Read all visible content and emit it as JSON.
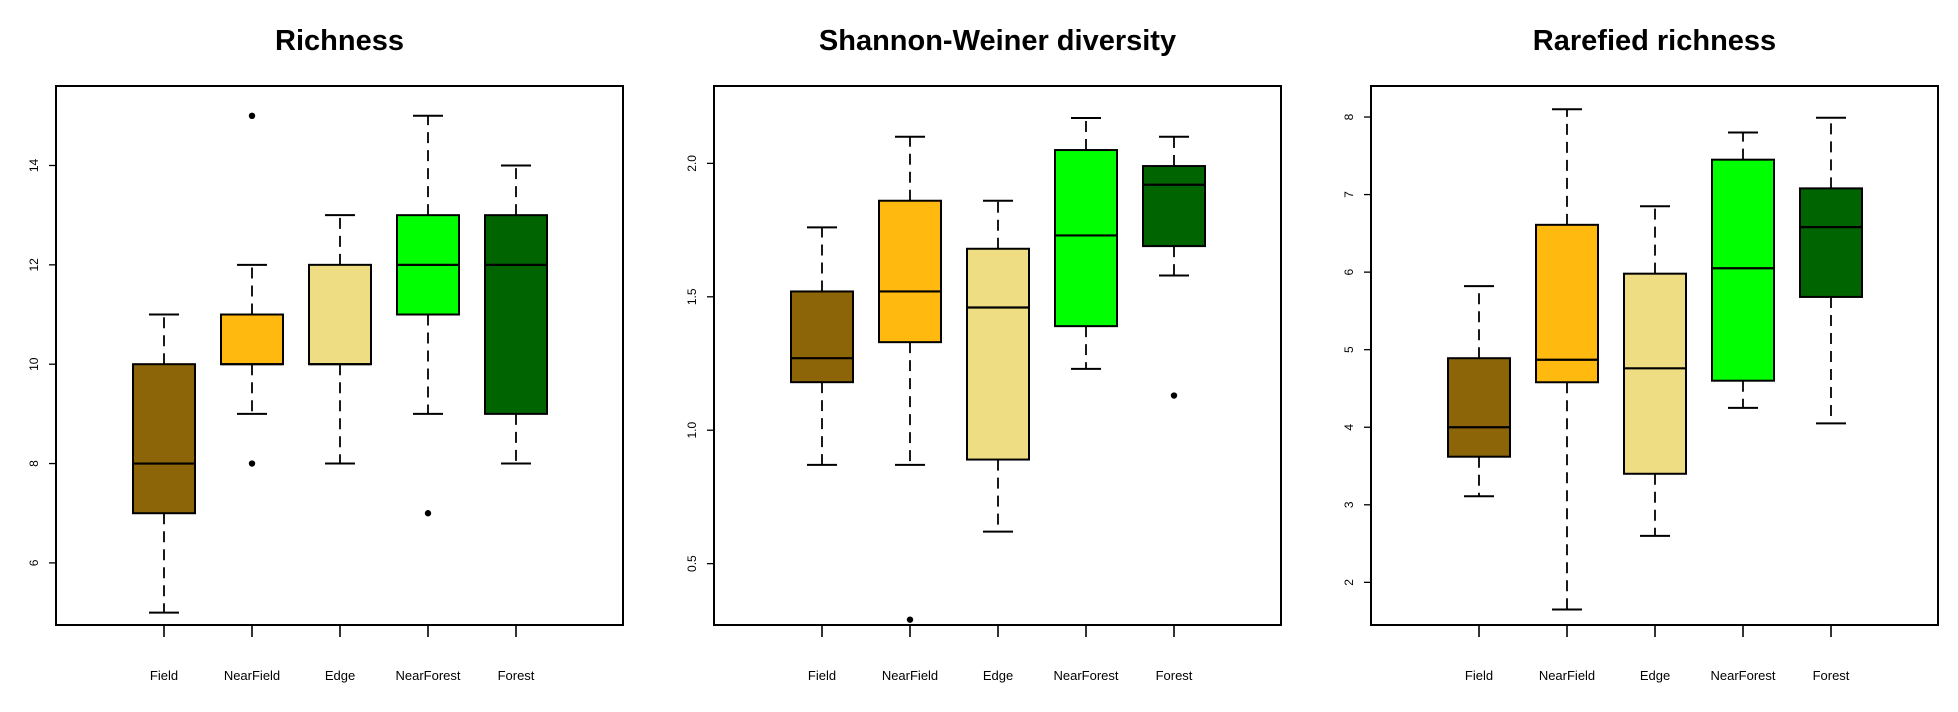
{
  "chart_data": [
    {
      "type": "box",
      "title": "Richness",
      "xlabel": "",
      "ylabel": "",
      "ylim": [
        4.75,
        15.6
      ],
      "yticks": [
        6,
        8,
        10,
        12,
        14
      ],
      "categories": [
        "Field",
        "NearField",
        "Edge",
        "NearForest",
        "Forest"
      ],
      "colors": [
        "#8B6508",
        "#FFB90F",
        "#EEDD82",
        "#00FF00",
        "#006400"
      ],
      "boxes": [
        {
          "category": "Field",
          "whisker_low": 5,
          "q1": 7,
          "median": 8,
          "q3": 10,
          "whisker_high": 11,
          "outliers": []
        },
        {
          "category": "NearField",
          "whisker_low": 9,
          "q1": 10,
          "median": 10,
          "q3": 11,
          "whisker_high": 12,
          "outliers": [
            15,
            8
          ]
        },
        {
          "category": "Edge",
          "whisker_low": 8,
          "q1": 10,
          "median": 10,
          "q3": 12,
          "whisker_high": 13,
          "outliers": []
        },
        {
          "category": "NearForest",
          "whisker_low": 9,
          "q1": 11,
          "median": 12,
          "q3": 13,
          "whisker_high": 15,
          "outliers": [
            7
          ]
        },
        {
          "category": "Forest",
          "whisker_low": 8,
          "q1": 9,
          "median": 12,
          "q3": 13,
          "whisker_high": 14,
          "outliers": []
        }
      ]
    },
    {
      "type": "box",
      "title": "Shannon-Weiner diversity",
      "xlabel": "",
      "ylabel": "",
      "ylim": [
        0.27,
        2.29
      ],
      "yticks": [
        "0.5",
        "1.0",
        "1.5",
        "2.0"
      ],
      "categories": [
        "Field",
        "NearField",
        "Edge",
        "NearForest",
        "Forest"
      ],
      "colors": [
        "#8B6508",
        "#FFB90F",
        "#EEDD82",
        "#00FF00",
        "#006400"
      ],
      "boxes": [
        {
          "category": "Field",
          "whisker_low": 0.87,
          "q1": 1.18,
          "median": 1.27,
          "q3": 1.52,
          "whisker_high": 1.76,
          "outliers": []
        },
        {
          "category": "NearField",
          "whisker_low": 0.87,
          "q1": 1.33,
          "median": 1.52,
          "q3": 1.86,
          "whisker_high": 2.1,
          "outliers": [
            0.29
          ]
        },
        {
          "category": "Edge",
          "whisker_low": 0.62,
          "q1": 0.89,
          "median": 1.46,
          "q3": 1.68,
          "whisker_high": 1.86,
          "outliers": []
        },
        {
          "category": "NearForest",
          "whisker_low": 1.23,
          "q1": 1.39,
          "median": 1.73,
          "q3": 2.05,
          "whisker_high": 2.17,
          "outliers": []
        },
        {
          "category": "Forest",
          "whisker_low": 1.58,
          "q1": 1.69,
          "median": 1.92,
          "q3": 1.99,
          "whisker_high": 2.1,
          "outliers": [
            1.13
          ]
        }
      ]
    },
    {
      "type": "box",
      "title": "Rarefied richness",
      "xlabel": "",
      "ylabel": "",
      "ylim": [
        1.45,
        8.4
      ],
      "yticks": [
        2,
        3,
        4,
        5,
        6,
        7,
        8
      ],
      "categories": [
        "Field",
        "NearField",
        "Edge",
        "NearForest",
        "Forest"
      ],
      "colors": [
        "#8B6508",
        "#FFB90F",
        "#EEDD82",
        "#00FF00",
        "#006400"
      ],
      "boxes": [
        {
          "category": "Field",
          "whisker_low": 3.11,
          "q1": 3.62,
          "median": 4.0,
          "q3": 4.89,
          "whisker_high": 5.82,
          "outliers": []
        },
        {
          "category": "NearField",
          "whisker_low": 1.65,
          "q1": 4.58,
          "median": 4.87,
          "q3": 6.61,
          "whisker_high": 8.1,
          "outliers": []
        },
        {
          "category": "Edge",
          "whisker_low": 2.6,
          "q1": 3.4,
          "median": 4.76,
          "q3": 5.98,
          "whisker_high": 6.85,
          "outliers": []
        },
        {
          "category": "NearForest",
          "whisker_low": 4.25,
          "q1": 4.6,
          "median": 6.05,
          "q3": 7.45,
          "whisker_high": 7.8,
          "outliers": []
        },
        {
          "category": "Forest",
          "whisker_low": 4.05,
          "q1": 5.68,
          "median": 6.58,
          "q3": 7.08,
          "whisker_high": 7.99,
          "outliers": []
        }
      ]
    }
  ]
}
